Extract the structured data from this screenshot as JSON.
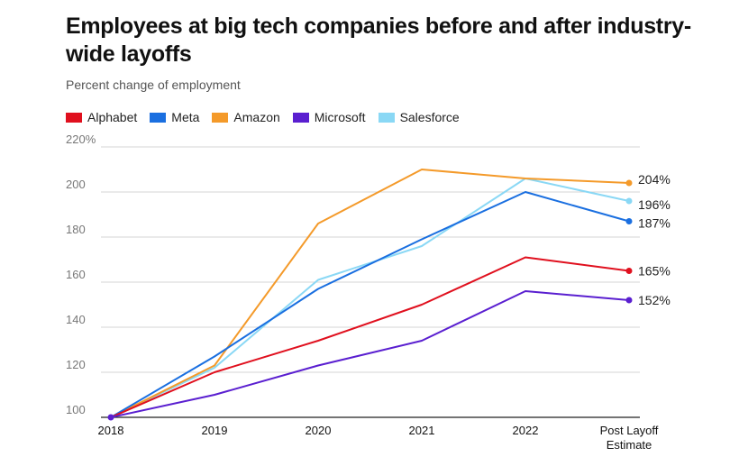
{
  "chart_data": {
    "type": "line",
    "title": "Employees at big tech companies before and after industry-wide layoffs",
    "subtitle": "Percent change of employment",
    "categories": [
      "2018",
      "2019",
      "2020",
      "2021",
      "2022",
      "Post Layoff Estimate"
    ],
    "category_lines": [
      [
        "2018"
      ],
      [
        "2019"
      ],
      [
        "2020"
      ],
      [
        "2021"
      ],
      [
        "2022"
      ],
      [
        "Post Layoff",
        "Estimate"
      ]
    ],
    "ylim": [
      100,
      220
    ],
    "yticks": [
      100,
      120,
      140,
      160,
      180,
      200,
      220
    ],
    "ytick_labels": [
      "100",
      "120",
      "140",
      "160",
      "180",
      "200",
      "220%"
    ],
    "xlabel": "",
    "ylabel": "",
    "series": [
      {
        "name": "Alphabet",
        "color": "#e0101e",
        "values": [
          100,
          120,
          134,
          150,
          171,
          165
        ],
        "end_label": "165%"
      },
      {
        "name": "Meta",
        "color": "#1a6fe0",
        "values": [
          100,
          127,
          157,
          179,
          200,
          187
        ],
        "end_label": "187%"
      },
      {
        "name": "Amazon",
        "color": "#f49a2a",
        "values": [
          100,
          123,
          186,
          210,
          206,
          204
        ],
        "end_label": "204%"
      },
      {
        "name": "Microsoft",
        "color": "#5a1fd0",
        "values": [
          100,
          110,
          123,
          134,
          156,
          152
        ],
        "end_label": "152%"
      },
      {
        "name": "Salesforce",
        "color": "#8ad8f5",
        "values": [
          100,
          122,
          161,
          176,
          206,
          196
        ],
        "end_label": "196%"
      }
    ]
  }
}
